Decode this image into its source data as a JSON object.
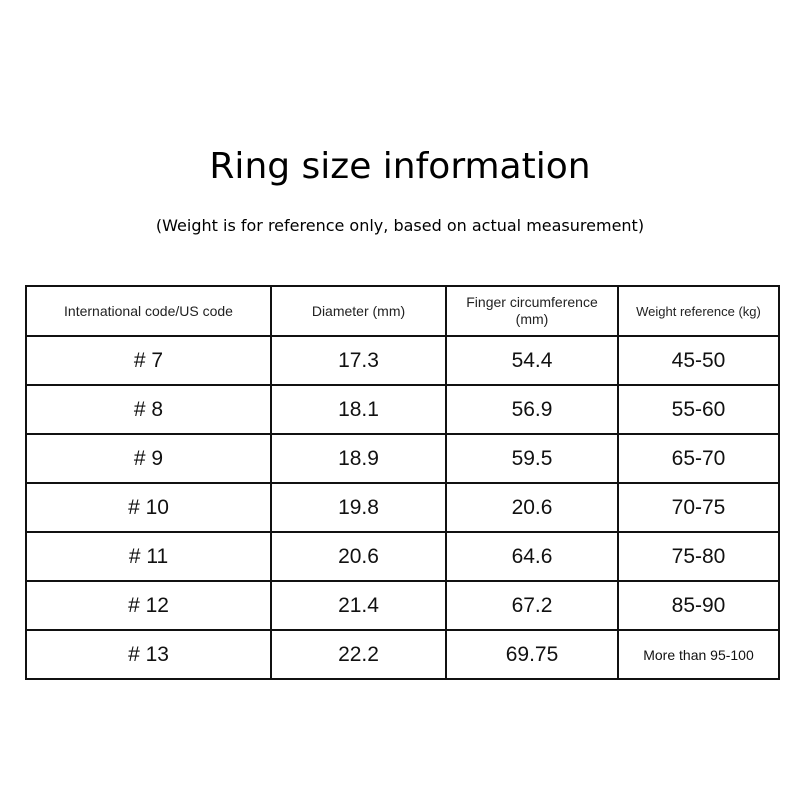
{
  "title": "Ring size information",
  "subtitle": "(Weight is for reference only, based on actual measurement)",
  "table": {
    "headers": [
      "International code/US code",
      "Diameter (mm)",
      "Finger circumference (mm)",
      "Weight reference (kg)"
    ],
    "rows": [
      [
        "# 7",
        "17.3",
        "54.4",
        "45-50"
      ],
      [
        "# 8",
        "18.1",
        "56.9",
        "55-60"
      ],
      [
        "# 9",
        "18.9",
        "59.5",
        "65-70"
      ],
      [
        "# 10",
        "19.8",
        "20.6",
        "70-75"
      ],
      [
        "# 11",
        "20.6",
        "64.6",
        "75-80"
      ],
      [
        "# 12",
        "21.4",
        "67.2",
        "85-90"
      ],
      [
        "# 13",
        "22.2",
        "69.75",
        "More than 95-100"
      ]
    ]
  }
}
